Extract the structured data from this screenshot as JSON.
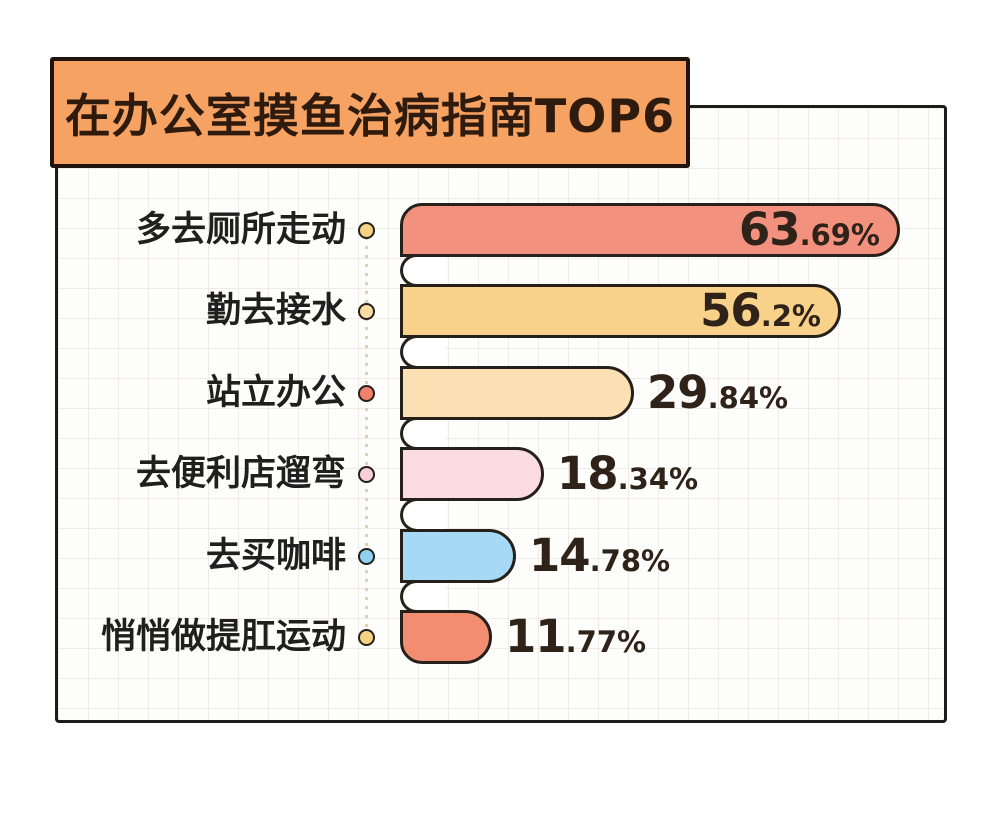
{
  "title": {
    "text": "在办公室摸鱼治病指南TOP6",
    "bg_color": "#F5A263",
    "border_color": "#1F130B"
  },
  "chart_data": {
    "type": "bar",
    "orientation": "horizontal",
    "title": "在办公室摸鱼治病指南TOP6",
    "unit": "%",
    "max_value": 63.69,
    "grid": true,
    "categories": [
      "多去厕所走动",
      "勤去接水",
      "站立办公",
      "去便利店遛弯",
      "去买咖啡",
      "悄悄做提肛运动"
    ],
    "values": [
      63.69,
      56.2,
      29.84,
      18.34,
      14.78,
      11.77
    ],
    "rows": [
      {
        "label": "多去厕所走动",
        "value": 63.69,
        "display_int": "63",
        "display_frac": ".69%",
        "bar_color": "#F2917E",
        "dot_color": "#F5D384",
        "percent_position": "inside"
      },
      {
        "label": "勤去接水",
        "value": 56.2,
        "display_int": "56",
        "display_frac": ".2%",
        "bar_color": "#F8D28A",
        "dot_color": "#FADCA4",
        "percent_position": "inside"
      },
      {
        "label": "站立办公",
        "value": 29.84,
        "display_int": "29",
        "display_frac": ".84%",
        "bar_color": "#FAE0B3",
        "dot_color": "#F1806C",
        "percent_position": "outside"
      },
      {
        "label": "去便利店遛弯",
        "value": 18.34,
        "display_int": "18",
        "display_frac": ".34%",
        "bar_color": "#FADCE2",
        "dot_color": "#F7CEDA",
        "percent_position": "outside"
      },
      {
        "label": "去买咖啡",
        "value": 14.78,
        "display_int": "14",
        "display_frac": ".78%",
        "bar_color": "#A6D9F4",
        "dot_color": "#90D1EF",
        "percent_position": "outside"
      },
      {
        "label": "悄悄做提肛运动",
        "value": 11.77,
        "display_int": "11",
        "display_frac": ".77%",
        "bar_color": "#F28D72",
        "dot_color": "#F5D384",
        "percent_position": "outside"
      }
    ],
    "style": {
      "outline_color": "#26201a",
      "frame_border_color": "#1c1c1c",
      "grid_line_color": "#efece8",
      "dotted_line_color": "#e8cdb0",
      "percent_text_color": "#2e2219",
      "label_text_color": "#1f1f1f"
    }
  }
}
